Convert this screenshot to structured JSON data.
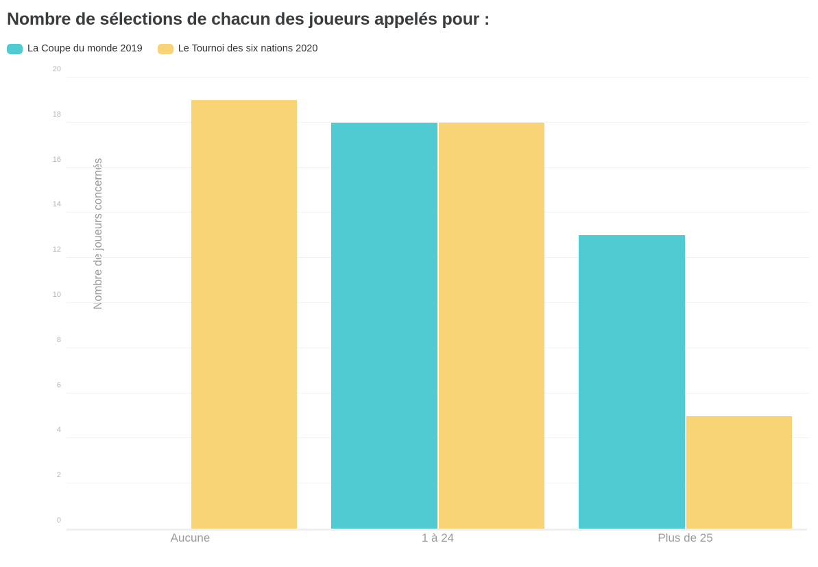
{
  "title": "Nombre de sélections de chacun des joueurs appelés pour :",
  "chart_data": {
    "type": "bar",
    "categories": [
      "Aucune",
      "1 à 24",
      "Plus de 25"
    ],
    "series": [
      {
        "name": "La Coupe du monde 2019",
        "color": "#4FCBD1",
        "values": [
          0,
          18,
          13
        ]
      },
      {
        "name": "Le Tournoi des six nations 2020",
        "color": "#F8D476",
        "values": [
          19,
          18,
          5
        ]
      }
    ],
    "title": "Nombre de sélections de chacun des joueurs appelés pour :",
    "xlabel": "",
    "ylabel": "Nombre de joueurs concernés",
    "ylim": [
      0,
      20
    ],
    "y_ticks": [
      0,
      2,
      4,
      6,
      8,
      10,
      12,
      14,
      16,
      18,
      20
    ],
    "grid": true,
    "legend_position": "top-left"
  },
  "colors": {
    "background": "#ffffff",
    "title_text": "#3a3d40",
    "legend_text": "#333333",
    "gridline": "#f2f2f2",
    "axis_line": "#f0f0f0",
    "tick_text": "#b3b3b3",
    "category_text": "#9a9a9a",
    "axis_title_text": "#999999"
  }
}
